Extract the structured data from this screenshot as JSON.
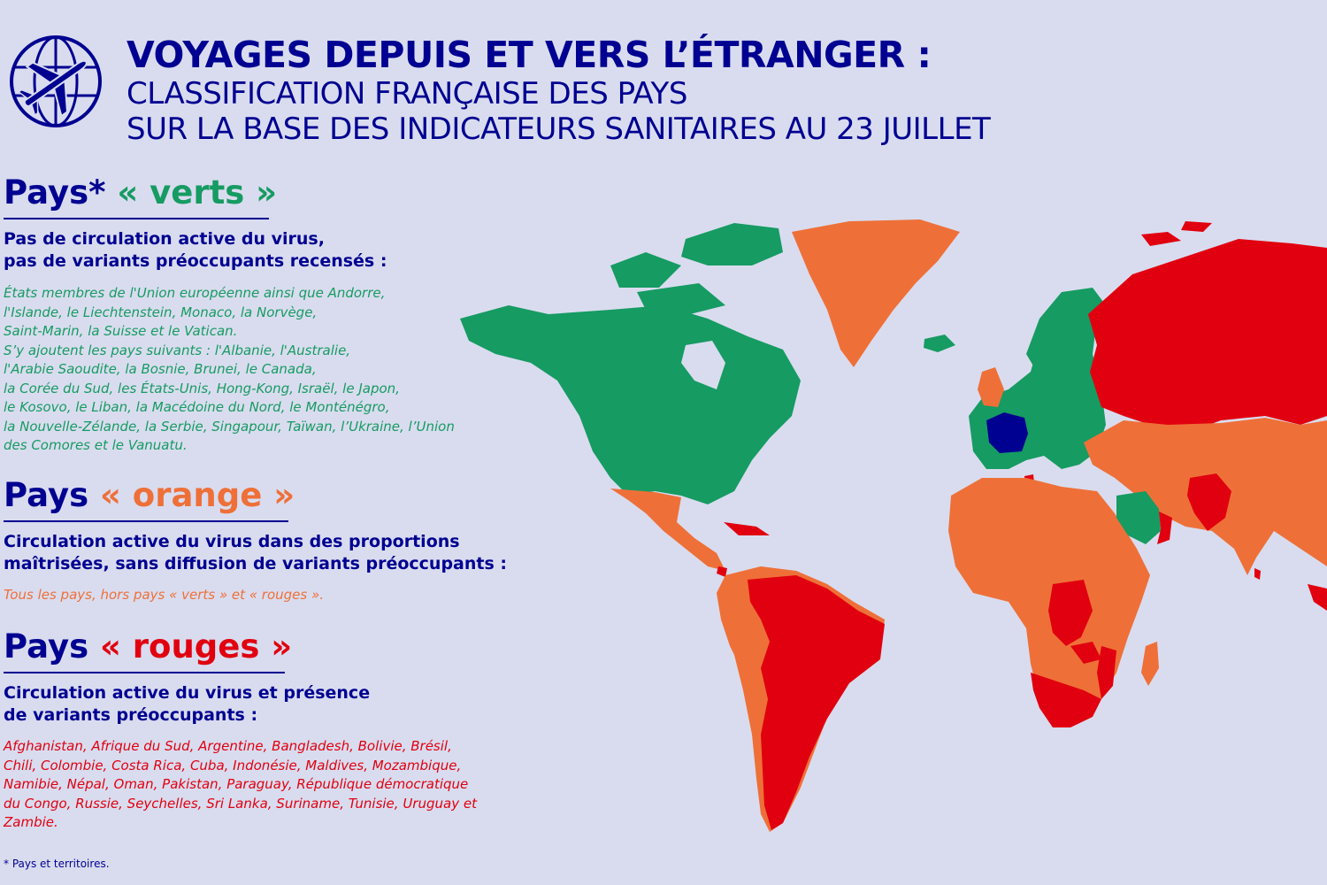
{
  "colors": {
    "navy": "#000091",
    "green": "#169b62",
    "orange": "#ee7038",
    "red": "#e1000f",
    "background": "#d9dcef"
  },
  "header": {
    "icon": "globe-airplane-icon",
    "title": "VOYAGES DEPUIS ET VERS L’ÉTRANGER :",
    "subtitle_line1": "CLASSIFICATION FRANÇAISE DES PAYS",
    "subtitle_line2": "SUR LA BASE DES INDICATEURS SANITAIRES AU 23 JUILLET"
  },
  "sections": {
    "green": {
      "prefix": "Pays*",
      "label": "« verts »",
      "lead_line1": "Pas de circulation active du virus,",
      "lead_line2": "pas de variants préoccupants recensés :",
      "countries": "États membres de l'Union européenne ainsi que Andorre,\nl'Islande, le Liechtenstein, Monaco, la Norvège,\nSaint-Marin, la Suisse et le Vatican.\nS’y ajoutent les pays suivants : l'Albanie, l'Australie,\nl'Arabie Saoudite, la Bosnie, Brunei, le Canada,\nla Corée du Sud, les États-Unis, Hong-Kong, Israël, le Japon,\nle Kosovo, le Liban, la Macédoine du Nord, le Monténégro,\nla Nouvelle-Zélande, la Serbie, Singapour, Taïwan, l’Ukraine, l’Union\ndes Comores et le Vanuatu."
    },
    "orange": {
      "prefix": "Pays",
      "label": "« orange »",
      "lead_line1": "Circulation active du virus dans des proportions",
      "lead_line2": "maîtrisées, sans diffusion de variants préoccupants :",
      "countries": "Tous les pays, hors pays « verts » et « rouges »."
    },
    "red": {
      "prefix": "Pays",
      "label": "« rouges »",
      "lead_line1": "Circulation active du virus et présence",
      "lead_line2": "de variants préoccupants :",
      "countries": "Afghanistan, Afrique du Sud, Argentine, Bangladesh, Bolivie, Brésil,\nChili, Colombie, Costa Rica, Cuba, Indonésie, Maldives, Mozambique,\nNamibie, Népal, Oman, Pakistan, Paraguay, République démocratique\ndu Congo, Russie, Seychelles, Sri Lanka, Suriname, Tunisie, Uruguay et\nZambie."
    }
  },
  "footnote": "* Pays et territoires."
}
